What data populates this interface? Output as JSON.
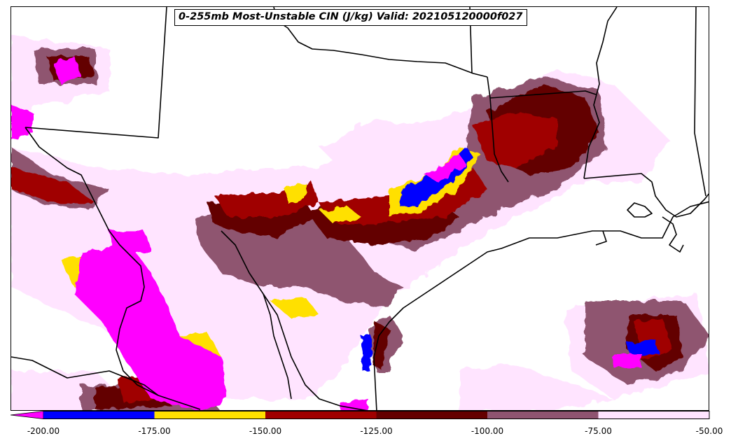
{
  "title": "0-255mb Most-Unstable CIN (J/kg) Valid: 202105120000f027",
  "colorbar": {
    "extend": "min",
    "extend_color": "#ff00ff",
    "bins": [
      {
        "from": -200,
        "to": -175,
        "color": "#0000ff"
      },
      {
        "from": -175,
        "to": -150,
        "color": "#ffe000"
      },
      {
        "from": -150,
        "to": -125,
        "color": "#a00000"
      },
      {
        "from": -125,
        "to": -100,
        "color": "#640000"
      },
      {
        "from": -100,
        "to": -75,
        "color": "#8f5470"
      },
      {
        "from": -75,
        "to": -50,
        "color": "#ffe4ff"
      }
    ],
    "tick_labels": [
      "-200.00",
      "-175.00",
      "-150.00",
      "-125.00",
      "-100.00",
      "-75.00",
      "-50.00"
    ]
  }
}
